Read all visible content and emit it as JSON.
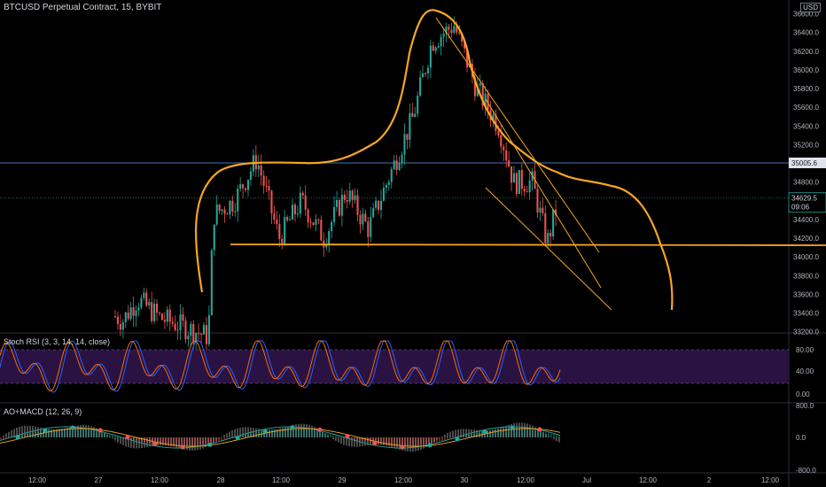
{
  "header": {
    "symbol_line": "BTCUSD Perpetual Contract, 15, BYBIT",
    "currency": "USD"
  },
  "indicators": {
    "rsi_label": "Stoch RSI (3, 3, 14, 14, close)",
    "macd_label": "AO+MACD (12, 26, 9)"
  },
  "price_axis": {
    "ticks": [
      "36600.0",
      "36400.0",
      "36200.0",
      "36000.0",
      "35800.0",
      "35600.0",
      "35400.0",
      "35200.0",
      "34800.0",
      "34400.0",
      "34200.0",
      "34000.0",
      "33800.0",
      "33600.0",
      "33400.0",
      "33200.0"
    ],
    "horizontal_level": "35005.6",
    "current_price": "34629.5",
    "countdown": "09:06"
  },
  "rsi_axis": {
    "ticks": [
      "80.00",
      "40.00",
      "0.00"
    ]
  },
  "macd_axis": {
    "ticks": [
      "800.0",
      "0.0",
      "-800.0"
    ]
  },
  "time_axis": {
    "ticks": [
      "12:00",
      "27",
      "12:00",
      "28",
      "12:00",
      "29",
      "12:00",
      "30",
      "12:00",
      "Jul",
      "12:00",
      "2",
      "12:00"
    ]
  },
  "colors": {
    "background": "#000000",
    "bull": "#26a69a",
    "bear": "#ef5350",
    "drawing": "#f5a623",
    "rsi_band": "#2a1242",
    "rsi_k": "#2962ff",
    "rsi_d": "#ff6d00",
    "macd_dot_up": "#26a69a",
    "macd_dot_down": "#ef5350"
  },
  "chart_data": {
    "type": "candlestick",
    "interval": "15",
    "exchange": "BYBIT",
    "ylim": [
      33200,
      36650
    ],
    "horizontal_level": 35005.6,
    "current_price": 34629.5,
    "price_path": [
      {
        "t": 0.0,
        "p": 33150
      },
      {
        "t": 0.06,
        "p": 33300
      },
      {
        "t": 0.1,
        "p": 33500
      },
      {
        "t": 0.14,
        "p": 33320
      },
      {
        "t": 0.16,
        "p": 33550
      },
      {
        "t": 0.19,
        "p": 33350
      },
      {
        "t": 0.255,
        "p": 33150
      },
      {
        "t": 0.262,
        "p": 34450
      },
      {
        "t": 0.29,
        "p": 34600
      },
      {
        "t": 0.32,
        "p": 35050
      },
      {
        "t": 0.35,
        "p": 34200
      },
      {
        "t": 0.38,
        "p": 34600
      },
      {
        "t": 0.41,
        "p": 34200
      },
      {
        "t": 0.44,
        "p": 34700
      },
      {
        "t": 0.47,
        "p": 34300
      },
      {
        "t": 0.5,
        "p": 34900
      },
      {
        "t": 0.53,
        "p": 35500
      },
      {
        "t": 0.555,
        "p": 36300
      },
      {
        "t": 0.585,
        "p": 36480
      },
      {
        "t": 0.615,
        "p": 35800
      },
      {
        "t": 0.645,
        "p": 35400
      },
      {
        "t": 0.665,
        "p": 34800
      },
      {
        "t": 0.69,
        "p": 34800
      },
      {
        "t": 0.71,
        "p": 34150
      },
      {
        "t": 0.725,
        "p": 34600
      }
    ],
    "stoch_rsi": {
      "range": [
        0,
        100
      ],
      "upper_band": 80,
      "lower_band": 20
    },
    "ao_macd": {
      "fast": 12,
      "slow": 26,
      "signal": 9
    }
  }
}
